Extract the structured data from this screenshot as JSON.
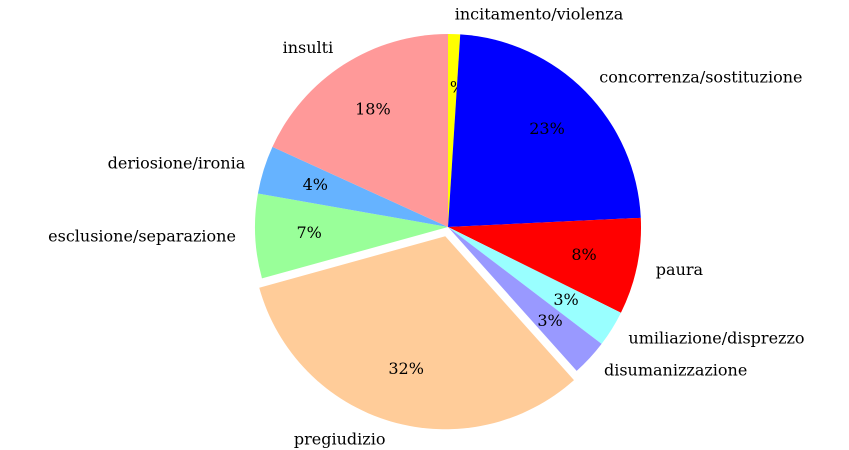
{
  "chart_data": {
    "type": "pie",
    "categories": [
      "incitamento/violenza",
      "concorrenza/sostituzione",
      "paura",
      "umiliazione/disprezzo",
      "disumanizzazione",
      "pregiudizio",
      "esclusione/separazione",
      "deriosione/ironia",
      "insulti"
    ],
    "values": [
      1,
      23,
      8,
      3,
      3,
      32,
      7,
      4,
      18
    ],
    "value_labels": [
      "1%",
      "23%",
      "8%",
      "3%",
      "3%",
      "32%",
      "7%",
      "4%",
      "18%"
    ],
    "colors": [
      "#ffff00",
      "#0000ff",
      "#ff0000",
      "#99ffff",
      "#9999ff",
      "#ffcc99",
      "#99ff99",
      "#66b3ff",
      "#ff9999"
    ],
    "explode": [
      0,
      0,
      0,
      0,
      0,
      0.05,
      0,
      0,
      0
    ]
  }
}
